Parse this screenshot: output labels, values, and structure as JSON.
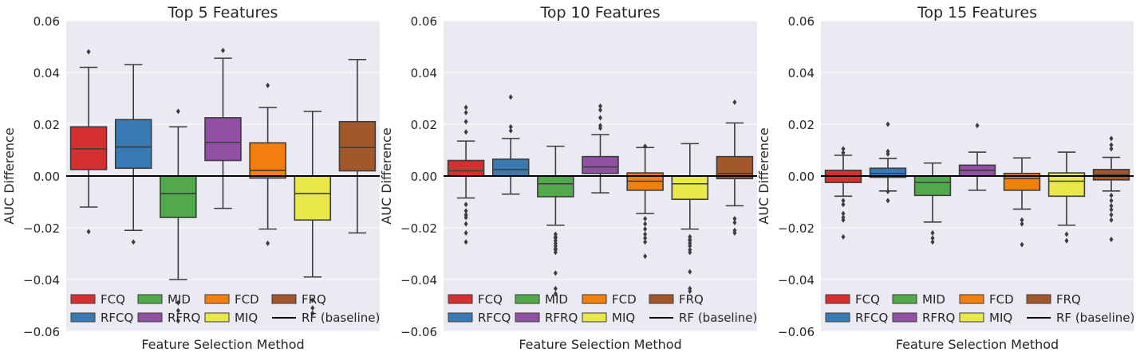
{
  "chart_data": [
    {
      "type": "box",
      "title": "Top 5 Features",
      "xlabel": "Feature Selection Method",
      "ylabel": "AUC Difference",
      "ylim": [
        -0.06,
        0.06
      ],
      "yticks": [
        0.06,
        0.04,
        0.02,
        0.0,
        -0.02,
        -0.04,
        -0.06
      ],
      "ytick_labels": [
        "0.06",
        "0.04",
        "0.02",
        "0.00",
        "−0.02",
        "−0.04",
        "−0.06"
      ],
      "baseline": 0.0,
      "grid": true,
      "legend_position": "lower-left",
      "series": [
        {
          "name": "FCQ",
          "color": "#d62f30",
          "q1": 0.0025,
          "median": 0.0105,
          "q3": 0.019,
          "whisker_low": -0.012,
          "whisker_high": 0.042,
          "outliers": [
            0.048,
            -0.0215
          ]
        },
        {
          "name": "RFCQ",
          "color": "#3a7ab2",
          "q1": 0.003,
          "median": 0.0112,
          "q3": 0.0218,
          "whisker_low": -0.021,
          "whisker_high": 0.043,
          "outliers": [
            -0.0255
          ]
        },
        {
          "name": "MID",
          "color": "#52a94c",
          "q1": -0.016,
          "median": -0.0068,
          "q3": 0.0,
          "whisker_low": -0.04,
          "whisker_high": 0.019,
          "outliers": [
            0.025,
            -0.049,
            -0.052,
            -0.056
          ]
        },
        {
          "name": "RFRQ",
          "color": "#9150a3",
          "q1": 0.006,
          "median": 0.013,
          "q3": 0.0225,
          "whisker_low": -0.0125,
          "whisker_high": 0.0455,
          "outliers": [
            0.0485
          ]
        },
        {
          "name": "FCD",
          "color": "#f37f0e",
          "q1": -0.0008,
          "median": 0.0022,
          "q3": 0.0128,
          "whisker_low": -0.0205,
          "whisker_high": 0.0265,
          "outliers": [
            0.035,
            -0.026
          ]
        },
        {
          "name": "MIQ",
          "color": "#e9e84a",
          "q1": -0.017,
          "median": -0.0068,
          "q3": 0.0,
          "whisker_low": -0.039,
          "whisker_high": 0.025,
          "outliers": [
            -0.048,
            -0.051,
            -0.053
          ]
        },
        {
          "name": "FRQ",
          "color": "#a3582c",
          "q1": 0.002,
          "median": 0.011,
          "q3": 0.021,
          "whisker_low": -0.022,
          "whisker_high": 0.045,
          "outliers": []
        }
      ]
    },
    {
      "type": "box",
      "title": "Top 10 Features",
      "xlabel": "Feature Selection Method",
      "ylabel": "AUC Difference",
      "ylim": [
        -0.06,
        0.06
      ],
      "yticks": [
        0.06,
        0.04,
        0.02,
        0.0,
        -0.02,
        -0.04,
        -0.06
      ],
      "ytick_labels": [
        "0.06",
        "0.04",
        "0.02",
        "0.00",
        "−0.02",
        "−0.04",
        "−0.06"
      ],
      "baseline": 0.0,
      "grid": true,
      "legend_position": "lower-left",
      "series": [
        {
          "name": "FCQ",
          "color": "#d62f30",
          "q1": 0.0,
          "median": 0.002,
          "q3": 0.006,
          "whisker_low": -0.0085,
          "whisker_high": 0.0135,
          "outliers": [
            0.0265,
            0.0245,
            0.021,
            0.017,
            -0.011,
            -0.0135,
            -0.015,
            -0.016,
            -0.0185,
            -0.022,
            -0.0255
          ]
        },
        {
          "name": "RFCQ",
          "color": "#3a7ab2",
          "q1": 0.0,
          "median": 0.0025,
          "q3": 0.0065,
          "whisker_low": -0.007,
          "whisker_high": 0.0145,
          "outliers": [
            0.0305,
            0.019,
            0.0175
          ]
        },
        {
          "name": "MID",
          "color": "#52a94c",
          "q1": -0.008,
          "median": -0.003,
          "q3": 0.0,
          "whisker_low": -0.019,
          "whisker_high": 0.0115,
          "outliers": [
            -0.0225,
            -0.0235,
            -0.024,
            -0.025,
            -0.026,
            -0.027,
            -0.028,
            -0.0285,
            -0.0295,
            -0.0375,
            -0.0435,
            -0.0455
          ]
        },
        {
          "name": "RFRQ",
          "color": "#9150a3",
          "q1": 0.001,
          "median": 0.0035,
          "q3": 0.0075,
          "whisker_low": -0.0065,
          "whisker_high": 0.016,
          "outliers": [
            0.027,
            0.0255,
            0.0225,
            0.0195,
            0.0185
          ]
        },
        {
          "name": "FCD",
          "color": "#f37f0e",
          "q1": -0.0055,
          "median": -0.002,
          "q3": 0.0012,
          "whisker_low": -0.0145,
          "whisker_high": 0.011,
          "outliers": [
            0.0115,
            -0.0165,
            -0.0185,
            -0.0205,
            -0.0225,
            -0.024,
            -0.0255,
            -0.031
          ]
        },
        {
          "name": "MIQ",
          "color": "#e9e84a",
          "q1": -0.009,
          "median": -0.003,
          "q3": 0.0,
          "whisker_low": -0.0205,
          "whisker_high": 0.0125,
          "outliers": [
            -0.0235,
            -0.0245,
            -0.025,
            -0.026,
            -0.027,
            -0.0285,
            -0.0295,
            -0.037,
            -0.0435,
            -0.0445
          ]
        },
        {
          "name": "FRQ",
          "color": "#a3582c",
          "q1": -0.001,
          "median": 0.001,
          "q3": 0.0075,
          "whisker_low": -0.0115,
          "whisker_high": 0.0205,
          "outliers": [
            0.0285,
            -0.0165,
            -0.018,
            -0.021,
            -0.022
          ]
        }
      ]
    },
    {
      "type": "box",
      "title": "Top 15 Features",
      "xlabel": "Feature Selection Method",
      "ylabel": "AUC Difference",
      "ylim": [
        -0.06,
        0.06
      ],
      "yticks": [
        0.06,
        0.04,
        0.02,
        0.0,
        -0.02,
        -0.04,
        -0.06
      ],
      "ytick_labels": [
        "0.06",
        "0.04",
        "0.02",
        "0.00",
        "−0.02",
        "−0.04",
        "−0.06"
      ],
      "baseline": 0.0,
      "grid": true,
      "legend_position": "lower-left",
      "series": [
        {
          "name": "FCQ",
          "color": "#d62f30",
          "q1": -0.0025,
          "median": 0.0,
          "q3": 0.0022,
          "whisker_low": -0.0078,
          "whisker_high": 0.008,
          "outliers": [
            0.0105,
            0.009,
            -0.0095,
            -0.011,
            -0.0145,
            -0.016,
            -0.017,
            -0.0235
          ]
        },
        {
          "name": "RFCQ",
          "color": "#3a7ab2",
          "q1": -0.0005,
          "median": 0.001,
          "q3": 0.003,
          "whisker_low": -0.0058,
          "whisker_high": 0.0068,
          "outliers": [
            0.02,
            0.0095,
            0.0085,
            -0.006,
            -0.0095
          ]
        },
        {
          "name": "MID",
          "color": "#52a94c",
          "q1": -0.0075,
          "median": -0.0025,
          "q3": 0.0,
          "whisker_low": -0.0178,
          "whisker_high": 0.005,
          "outliers": [
            -0.022,
            -0.024,
            -0.0255
          ]
        },
        {
          "name": "RFRQ",
          "color": "#9150a3",
          "q1": 0.0,
          "median": 0.0022,
          "q3": 0.0042,
          "whisker_low": -0.0055,
          "whisker_high": 0.0092,
          "outliers": [
            0.0195
          ]
        },
        {
          "name": "FCD",
          "color": "#f37f0e",
          "q1": -0.0055,
          "median": -0.001,
          "q3": 0.001,
          "whisker_low": -0.0128,
          "whisker_high": 0.007,
          "outliers": [
            -0.017,
            -0.0185,
            -0.0265
          ]
        },
        {
          "name": "MIQ",
          "color": "#e9e84a",
          "q1": -0.0078,
          "median": -0.002,
          "q3": 0.0012,
          "whisker_low": -0.019,
          "whisker_high": 0.0092,
          "outliers": [
            -0.0225,
            -0.025
          ]
        },
        {
          "name": "FRQ",
          "color": "#a3582c",
          "q1": -0.0015,
          "median": 0.0005,
          "q3": 0.0025,
          "whisker_low": -0.0058,
          "whisker_high": 0.0072,
          "outliers": [
            0.0145,
            0.012,
            0.0105,
            -0.0075,
            -0.0095,
            -0.0115,
            -0.013,
            -0.015,
            -0.017,
            -0.0245
          ]
        }
      ]
    }
  ],
  "legend": {
    "items": [
      {
        "label": "FCQ",
        "color": "#d62f30",
        "kind": "patch"
      },
      {
        "label": "RFCQ",
        "color": "#3a7ab2",
        "kind": "patch"
      },
      {
        "label": "MID",
        "color": "#52a94c",
        "kind": "patch"
      },
      {
        "label": "RFRQ",
        "color": "#9150a3",
        "kind": "patch"
      },
      {
        "label": "FCD",
        "color": "#f37f0e",
        "kind": "patch"
      },
      {
        "label": "MIQ",
        "color": "#e9e84a",
        "kind": "patch"
      },
      {
        "label": "FRQ",
        "color": "#a3582c",
        "kind": "patch"
      },
      {
        "label": "RF (baseline)",
        "color": "#000000",
        "kind": "line"
      }
    ]
  },
  "style": {
    "plot_background": "#eaeaf2",
    "grid_color": "#ffffff",
    "box_edge_color": "#3c3c3c",
    "text_color": "#262626"
  }
}
